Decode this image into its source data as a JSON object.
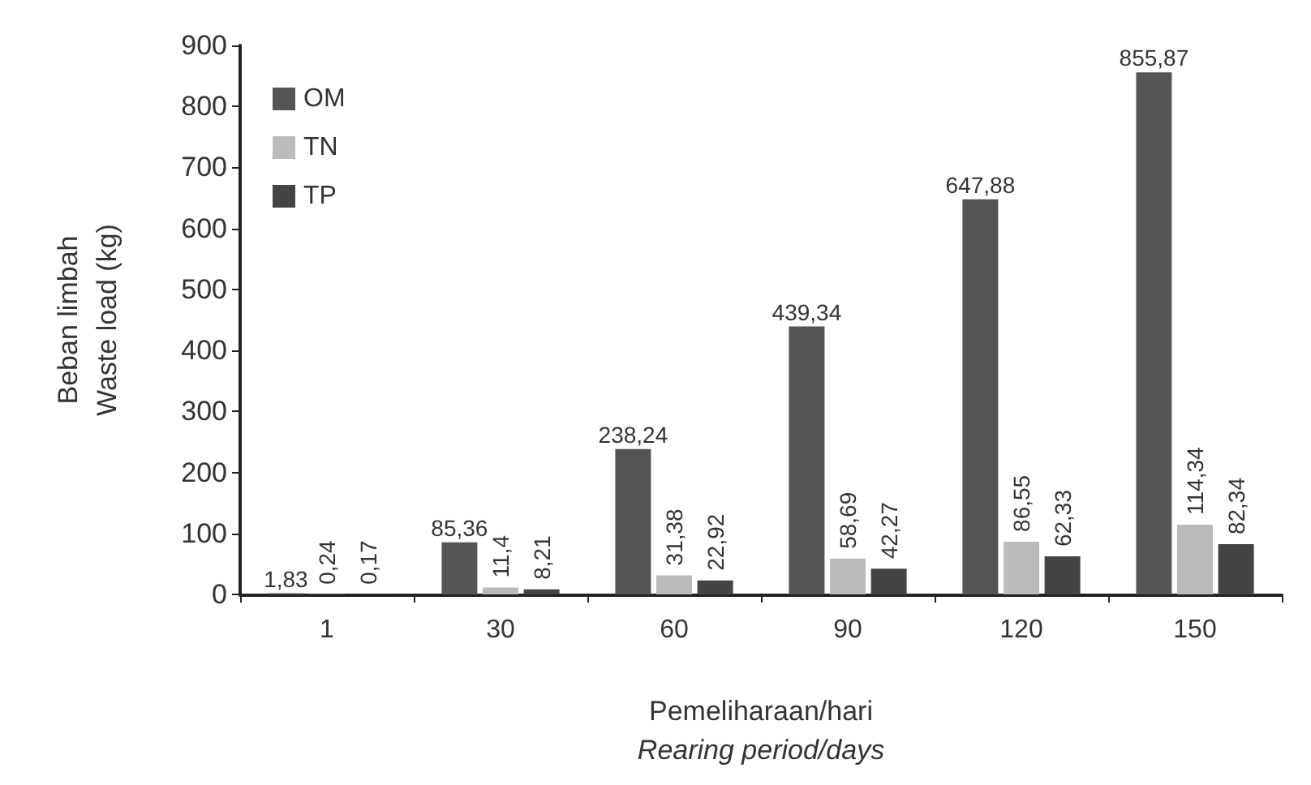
{
  "chart_data": {
    "type": "bar",
    "xlabel": "Pemeliharaan/hari\nRearing period/days",
    "ylabel": "Beban limbah\nWaste load (kg)",
    "categories": [
      "1",
      "30",
      "60",
      "90",
      "120",
      "150"
    ],
    "series": [
      {
        "name": "OM",
        "color": "#555555",
        "values": [
          1.83,
          85.36,
          238.24,
          439.34,
          647.88,
          855.87
        ],
        "value_labels": [
          "1,83",
          "85,36",
          "238,24",
          "439,34",
          "647,88",
          "855,87"
        ]
      },
      {
        "name": "TN",
        "color": "#bbbbbb",
        "values": [
          0.24,
          11.4,
          31.38,
          58.69,
          86.55,
          114.34
        ],
        "value_labels": [
          "0,24",
          "11,4",
          "31,38",
          "58,69",
          "86,55",
          "114,34"
        ]
      },
      {
        "name": "TP",
        "color": "#444444",
        "values": [
          0.17,
          8.21,
          22.92,
          42.27,
          62.33,
          82.34
        ],
        "value_labels": [
          "0,17",
          "8,21",
          "22,92",
          "42,27",
          "62,33",
          "82,34"
        ]
      }
    ],
    "ylim": [
      0,
      900
    ],
    "yticks": [
      0,
      100,
      200,
      300,
      400,
      500,
      600,
      700,
      800,
      900
    ],
    "grid": false,
    "legend": "top left"
  }
}
